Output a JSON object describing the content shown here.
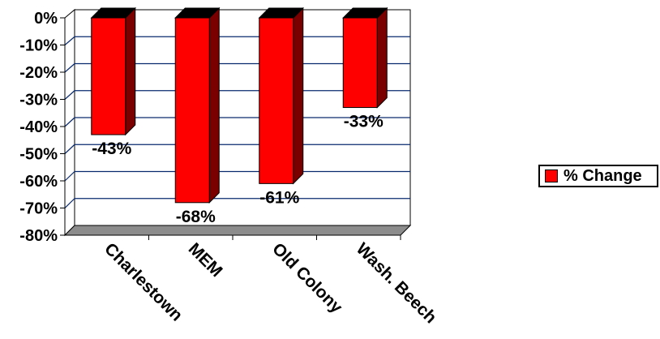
{
  "chart_data": {
    "type": "bar",
    "style": "3d-column",
    "categories": [
      "Charlestown",
      "MEM",
      "Old Colony",
      "Wash. Beech"
    ],
    "series": [
      {
        "name": "% Change",
        "values": [
          -43,
          -68,
          -61,
          -33
        ],
        "color": "#ff0000"
      }
    ],
    "data_labels": [
      "-43%",
      "-68%",
      "-61%",
      "-33%"
    ],
    "ylim": [
      -80,
      0
    ],
    "y_ticks": [
      "0%",
      "-10%",
      "-20%",
      "-30%",
      "-40%",
      "-50%",
      "-60%",
      "-70%",
      "-80%"
    ],
    "grid": true,
    "legend_position": "right",
    "colors": {
      "bar_front": "#ff0000",
      "bar_side": "#7a0000",
      "bar_top": "#000000",
      "floor": "#8c8c8c",
      "grid": "#0a2a6e"
    }
  }
}
